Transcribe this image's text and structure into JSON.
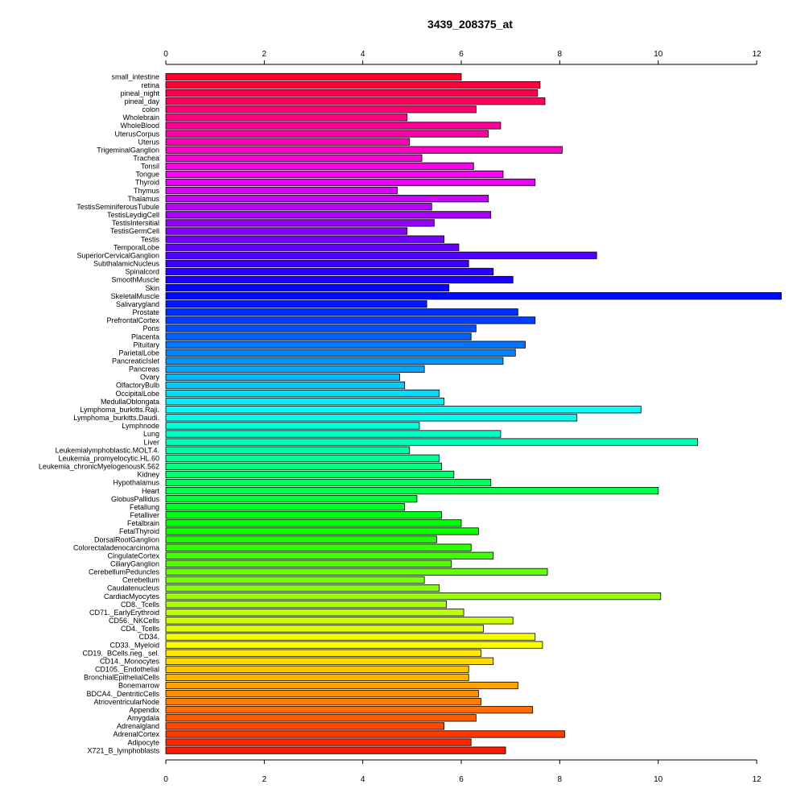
{
  "chart_data": {
    "type": "bar",
    "orientation": "horizontal",
    "title": "3439_208375_at",
    "xlabel": "",
    "ylabel": "",
    "xlim": [
      0,
      12
    ],
    "xticks": [
      0,
      2,
      4,
      6,
      8,
      10,
      12
    ],
    "tick_labels": [
      "0",
      "2",
      "4",
      "6",
      "8",
      "10",
      "12"
    ],
    "grid": false,
    "color_scheme": "rainbow (red → magenta → blue → cyan → green → yellow → orange → red)",
    "categories": [
      "small_intestine",
      "retina",
      "pineal_night",
      "pineal_day",
      "colon",
      "Wholebrain",
      "WholeBlood",
      "UterusCorpus",
      "Uterus",
      "TrigeminalGanglion",
      "Trachea",
      "Tonsil",
      "Tongue",
      "Thyroid",
      "Thymus",
      "Thalamus",
      "TestisSeminiferousTubule",
      "TestisLeydigCell",
      "TestisIntersitial",
      "TestisGermCell",
      "Testis",
      "TemporalLobe",
      "SuperiorCervicalGanglion",
      "SubthalamicNucleus",
      "Spinalcord",
      "SmoothMuscle",
      "Skin",
      "SkeletalMuscle",
      "Salivarygland",
      "Prostate",
      "PrefrontalCortex",
      "Pons",
      "Placenta",
      "Pituitary",
      "ParietalLobe",
      "PancreaticIslet",
      "Pancreas",
      "Ovary",
      "OlfactoryBulb",
      "OccipitalLobe",
      "MedullaOblongata",
      "Lymphoma_burkitts.Raji.",
      "Lymphoma_burkitts.Daudi.",
      "Lymphnode",
      "Lung",
      "Liver",
      "Leukemialymphoblastic.MOLT.4.",
      "Leukemia_promyelocytic.HL.60",
      "Leukemia_chronicMyelogenousK.562",
      "Kidney",
      "Hypothalamus",
      "Heart",
      "GlobusPallidus",
      "Fetallung",
      "Fetalliver",
      "Fetalbrain",
      "FetalThyroid",
      "DorsalRootGanglion",
      "Colorectaladenocarcinoma",
      "CingulateCortex",
      "CiliaryGanglion",
      "CerebellumPeduncles",
      "Cerebellum",
      "Caudatenucleus",
      "CardiacMyocytes",
      "CD8._Tcells",
      "CD71._EarlyErythroid",
      "CD56._NKCells",
      "CD4._Tcells",
      "CD34.",
      "CD33._Myeloid",
      "CD19._BCells.neg._sel.",
      "CD14._Monocytes",
      "CD105._Endothelial",
      "BronchialEpithelialCells",
      "Bonemarrow",
      "BDCA4._DentriticCells",
      "AtrioventricularNode",
      "Appendix",
      "Amygdala",
      "Adrenalgland",
      "AdrenalCortex",
      "Adipocyte",
      "X721_B_lymphoblasts"
    ],
    "values": [
      6.0,
      7.6,
      7.55,
      7.7,
      6.3,
      4.9,
      6.8,
      6.55,
      4.95,
      8.05,
      5.2,
      6.25,
      6.85,
      7.5,
      4.7,
      6.55,
      5.4,
      6.6,
      5.45,
      4.9,
      5.65,
      5.95,
      8.75,
      6.15,
      6.65,
      7.05,
      5.75,
      12.5,
      5.3,
      7.15,
      7.5,
      6.3,
      6.2,
      7.3,
      7.1,
      6.85,
      5.25,
      4.75,
      4.85,
      5.55,
      5.65,
      9.65,
      8.35,
      5.15,
      6.8,
      10.8,
      4.95,
      5.55,
      5.6,
      5.85,
      6.6,
      10.0,
      5.1,
      4.85,
      5.6,
      6.0,
      6.35,
      5.5,
      6.2,
      6.65,
      5.8,
      7.75,
      5.25,
      5.55,
      10.05,
      5.7,
      6.05,
      7.05,
      6.45,
      7.5,
      7.65,
      6.4,
      6.65,
      6.15,
      6.15,
      7.15,
      6.35,
      6.4,
      7.45,
      6.3,
      5.65,
      8.1,
      6.2,
      6.9
    ]
  }
}
